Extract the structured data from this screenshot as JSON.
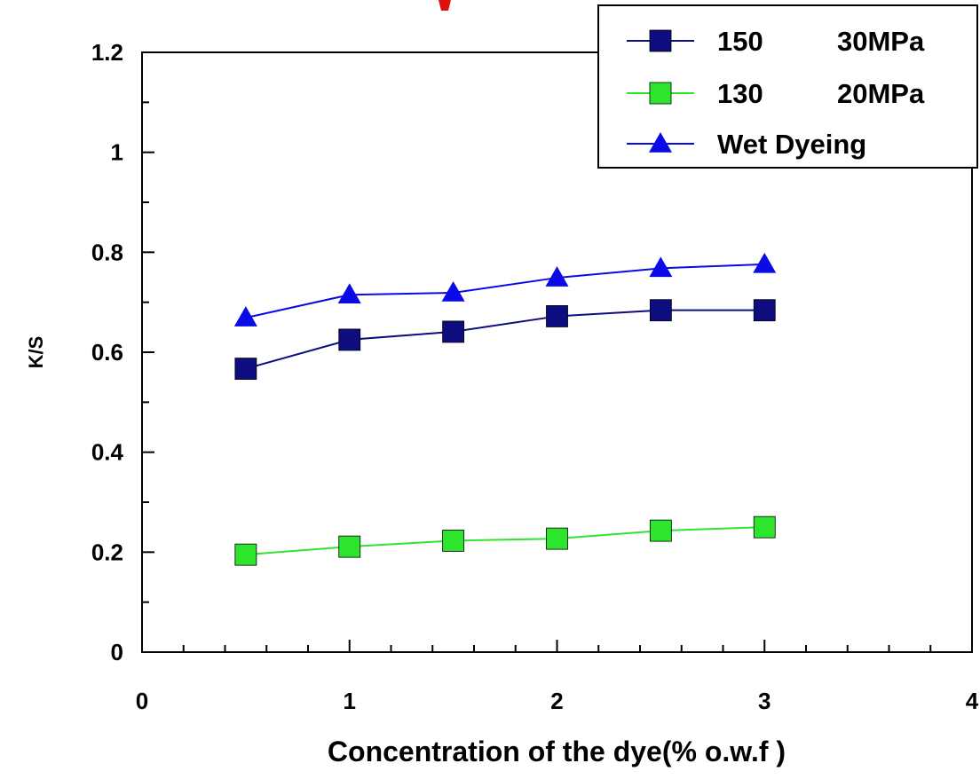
{
  "chart_data": {
    "type": "line",
    "title": "",
    "xlabel": "Concentration of the dye(% o.w.f )",
    "ylabel": "K/S",
    "xlim": [
      0,
      4
    ],
    "ylim": [
      0,
      1.2
    ],
    "x_ticks": [
      0,
      1,
      2,
      3,
      4
    ],
    "x_tick_labels": [
      "0",
      "1",
      "2",
      "3",
      "4"
    ],
    "y_ticks": [
      0,
      0.2,
      0.4,
      0.6,
      0.8,
      1.0,
      1.2
    ],
    "y_tick_labels": [
      "0",
      "0.2",
      "0.4",
      "0.6",
      "0.8",
      "1",
      "1.2"
    ],
    "grid": false,
    "legend_position": "top-right",
    "x": [
      0.5,
      1.0,
      1.5,
      2.0,
      2.5,
      3.0
    ],
    "series": [
      {
        "name": "150 30MPa",
        "name_parts": [
          "150",
          "30MPa"
        ],
        "marker": "square",
        "color": "#0d0d80",
        "values": [
          0.567,
          0.625,
          0.641,
          0.672,
          0.684,
          0.684
        ]
      },
      {
        "name": "130 20MPa",
        "name_parts": [
          "130",
          "20MPa"
        ],
        "marker": "square",
        "color": "#2de52d",
        "values": [
          0.195,
          0.211,
          0.223,
          0.227,
          0.243,
          0.25
        ]
      },
      {
        "name": "Wet Dyeing",
        "name_parts": [
          "Wet Dyeing",
          ""
        ],
        "marker": "triangle",
        "color": "#0a0ae6",
        "values": [
          0.669,
          0.715,
          0.719,
          0.749,
          0.768,
          0.776
        ]
      }
    ]
  }
}
